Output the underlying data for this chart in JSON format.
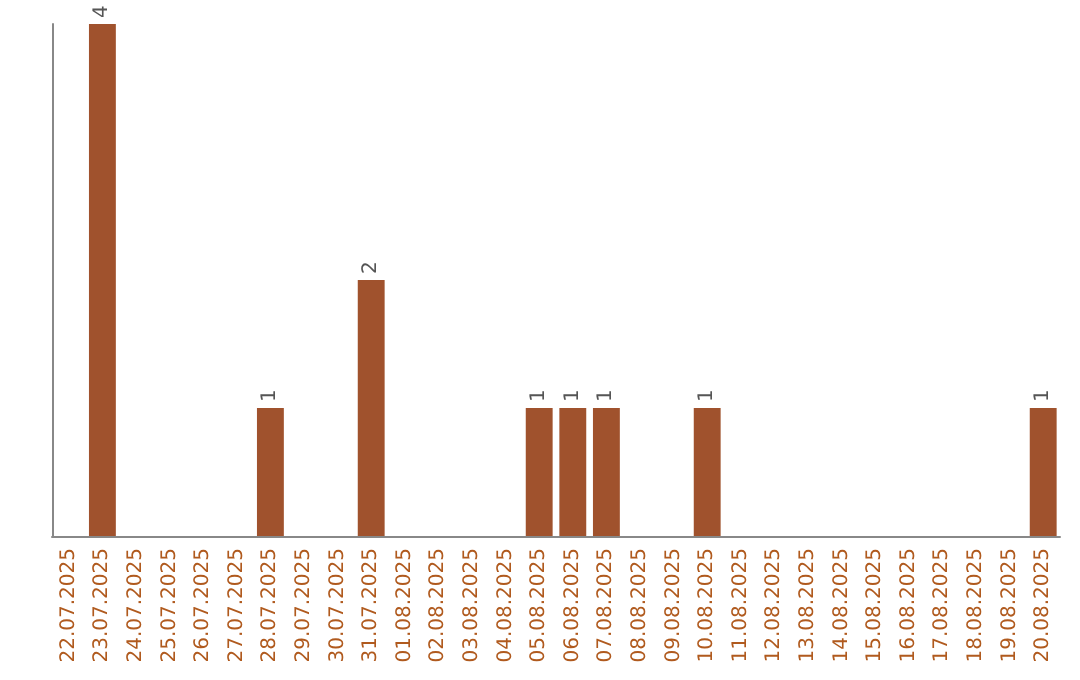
{
  "chart_data": {
    "type": "bar",
    "categories": [
      "22.07.2025",
      "23.07.2025",
      "24.07.2025",
      "25.07.2025",
      "26.07.2025",
      "27.07.2025",
      "28.07.2025",
      "29.07.2025",
      "30.07.2025",
      "31.07.2025",
      "01.08.2025",
      "02.08.2025",
      "03.08.2025",
      "04.08.2025",
      "05.08.2025",
      "06.08.2025",
      "07.08.2025",
      "08.08.2025",
      "09.08.2025",
      "10.08.2025",
      "11.08.2025",
      "12.08.2025",
      "13.08.2025",
      "14.08.2025",
      "15.08.2025",
      "16.08.2025",
      "17.08.2025",
      "18.08.2025",
      "19.08.2025",
      "20.08.2025"
    ],
    "values": [
      0,
      4,
      0,
      0,
      0,
      0,
      1,
      0,
      0,
      2,
      0,
      0,
      0,
      0,
      1,
      1,
      1,
      0,
      0,
      1,
      0,
      0,
      0,
      0,
      0,
      0,
      0,
      0,
      0,
      1
    ],
    "value_labels": [
      null,
      "4",
      null,
      null,
      null,
      null,
      "1",
      null,
      null,
      "2",
      null,
      null,
      null,
      null,
      "1",
      "1",
      "1",
      null,
      null,
      "1",
      null,
      null,
      null,
      null,
      null,
      null,
      null,
      null,
      null,
      "1"
    ],
    "color": "#a0522d",
    "grid": false,
    "tick_labels": "x"
  }
}
